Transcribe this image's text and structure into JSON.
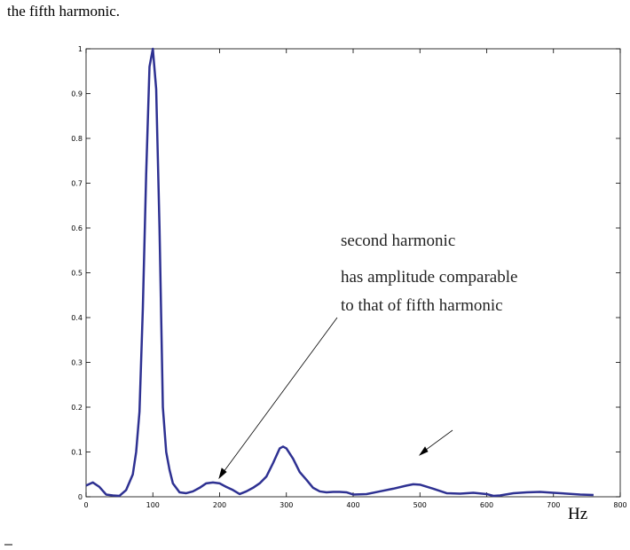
{
  "caption": "the fifth harmonic.",
  "chart_data": {
    "type": "line",
    "x": [
      0,
      10,
      20,
      30,
      40,
      50,
      60,
      70,
      75,
      80,
      85,
      90,
      95,
      100,
      105,
      110,
      115,
      120,
      125,
      130,
      140,
      150,
      160,
      170,
      180,
      190,
      200,
      210,
      220,
      230,
      240,
      250,
      260,
      270,
      280,
      290,
      295,
      300,
      310,
      320,
      330,
      340,
      350,
      360,
      370,
      380,
      390,
      400,
      420,
      440,
      460,
      480,
      490,
      500,
      520,
      540,
      560,
      580,
      600,
      610,
      620,
      640,
      660,
      680,
      700,
      720,
      740,
      760
    ],
    "series": [
      {
        "color": "#2e3192",
        "values": [
          0.025,
          0.032,
          0.022,
          0.005,
          0.003,
          0.002,
          0.015,
          0.05,
          0.1,
          0.19,
          0.42,
          0.72,
          0.96,
          1.0,
          0.91,
          0.6,
          0.2,
          0.1,
          0.06,
          0.03,
          0.01,
          0.008,
          0.012,
          0.02,
          0.03,
          0.032,
          0.03,
          0.022,
          0.015,
          0.006,
          0.012,
          0.02,
          0.03,
          0.045,
          0.075,
          0.108,
          0.112,
          0.108,
          0.085,
          0.055,
          0.038,
          0.02,
          0.012,
          0.01,
          0.011,
          0.011,
          0.01,
          0.005,
          0.006,
          0.012,
          0.018,
          0.025,
          0.028,
          0.027,
          0.018,
          0.008,
          0.007,
          0.009,
          0.006,
          0.002,
          0.003,
          0.008,
          0.01,
          0.011,
          0.009,
          0.007,
          0.005,
          0.004
        ]
      }
    ],
    "xlim": [
      0,
      800
    ],
    "ylim": [
      0,
      1
    ],
    "xticks": [
      0,
      100,
      200,
      300,
      400,
      500,
      600,
      700,
      800
    ],
    "yticks": [
      0,
      0.1,
      0.2,
      0.3,
      0.4,
      0.5,
      0.6,
      0.7,
      0.8,
      0.9,
      1
    ],
    "xlabel": "Hz",
    "annotation": [
      "second harmonic",
      "has amplitude comparable",
      "to that of fifth harmonic"
    ]
  }
}
